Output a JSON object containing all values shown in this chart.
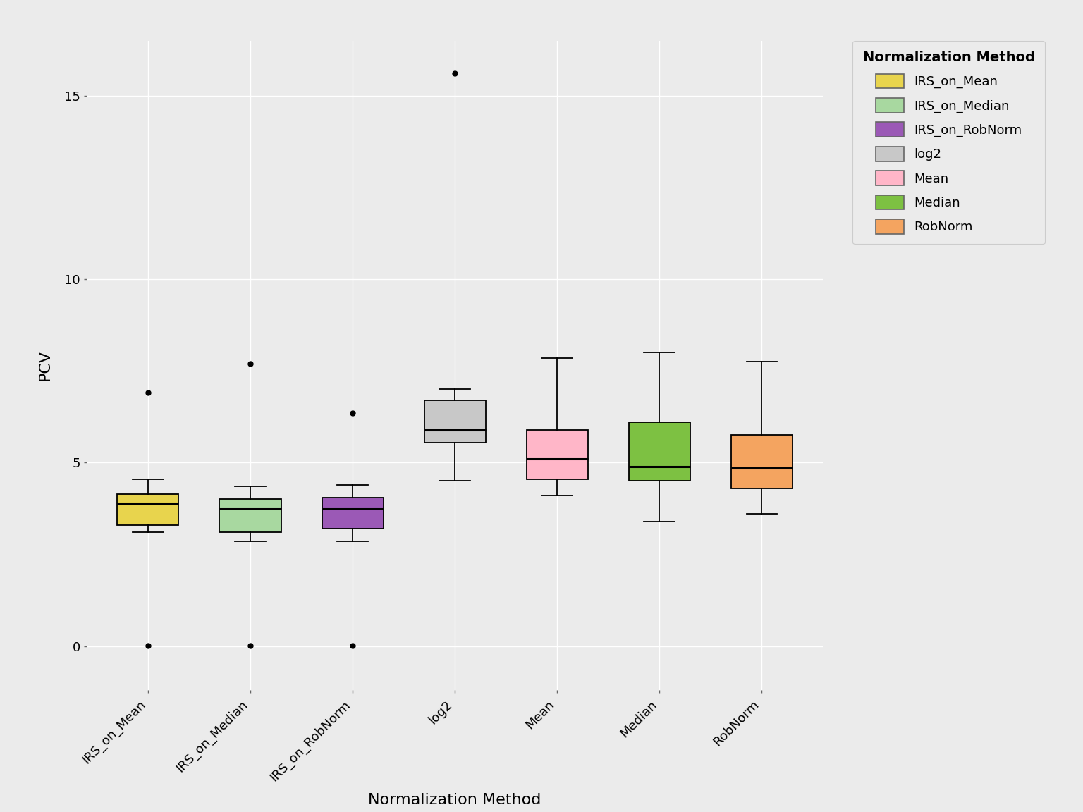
{
  "categories": [
    "IRS_on_Mean",
    "IRS_on_Median",
    "IRS_on_RobNorm",
    "log2",
    "Mean",
    "Median",
    "RobNorm"
  ],
  "colors": [
    "#E8D44D",
    "#A8D8A0",
    "#9B59B6",
    "#C8C8C8",
    "#FFB6C8",
    "#7DC142",
    "#F4A460"
  ],
  "box_data": {
    "IRS_on_Mean": {
      "whislo": 3.1,
      "q1": 3.3,
      "med": 3.9,
      "q3": 4.15,
      "whishi": 4.55,
      "fliers_low": [
        0.02
      ],
      "fliers_high": [
        6.9
      ]
    },
    "IRS_on_Median": {
      "whislo": 2.85,
      "q1": 3.1,
      "med": 3.75,
      "q3": 4.0,
      "whishi": 4.35,
      "fliers_low": [
        0.02
      ],
      "fliers_high": [
        7.7
      ]
    },
    "IRS_on_RobNorm": {
      "whislo": 2.85,
      "q1": 3.2,
      "med": 3.75,
      "q3": 4.05,
      "whishi": 4.4,
      "fliers_low": [
        0.02
      ],
      "fliers_high": [
        6.35
      ]
    },
    "log2": {
      "whislo": 4.5,
      "q1": 5.55,
      "med": 5.9,
      "q3": 6.7,
      "whishi": 7.0,
      "fliers_low": [],
      "fliers_high": [
        15.6
      ]
    },
    "Mean": {
      "whislo": 4.1,
      "q1": 4.55,
      "med": 5.1,
      "q3": 5.9,
      "whishi": 7.85,
      "fliers_low": [],
      "fliers_high": []
    },
    "Median": {
      "whislo": 3.4,
      "q1": 4.5,
      "med": 4.9,
      "q3": 6.1,
      "whishi": 8.0,
      "fliers_low": [],
      "fliers_high": []
    },
    "RobNorm": {
      "whislo": 3.6,
      "q1": 4.3,
      "med": 4.85,
      "q3": 5.75,
      "whishi": 7.75,
      "fliers_low": [],
      "fliers_high": []
    }
  },
  "ylabel": "PCV",
  "xlabel": "Normalization Method",
  "legend_title": "Normalization Method",
  "ylim": [
    -1.2,
    16.5
  ],
  "yticks": [
    0,
    5,
    10,
    15
  ],
  "background_color": "#EBEBEB",
  "grid_color": "#FFFFFF",
  "box_width": 0.6,
  "legend_labels": [
    "IRS_on_Mean",
    "IRS_on_Median",
    "IRS_on_RobNorm",
    "log2",
    "Mean",
    "Median",
    "RobNorm"
  ]
}
